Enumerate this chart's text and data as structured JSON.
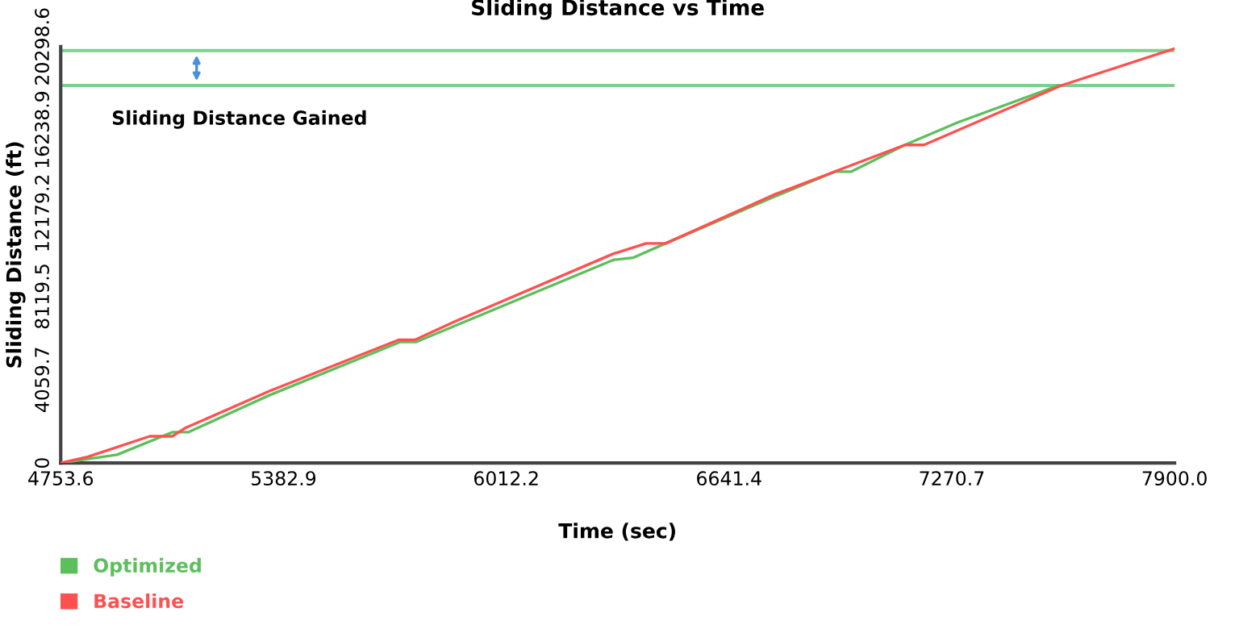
{
  "chart_data": {
    "type": "line",
    "title": "Sliding Distance vs Time",
    "xlabel": "Time (sec)",
    "ylabel": "Sliding Distance (ft)",
    "xlim": [
      4753.6,
      7900.0
    ],
    "xticks": [
      4753.6,
      5382.9,
      6012.2,
      6641.4,
      7270.7,
      {
        "value": 7900,
        "label": "7900.0"
      }
    ],
    "ylim": [
      0,
      20298.6
    ],
    "yticks": [
      0,
      4059.7,
      8119.5,
      12179.2,
      16238.9,
      20298.6
    ],
    "grid": false,
    "legend": "bottom left",
    "marker": "none",
    "line_style": "solid",
    "series": [
      {
        "name": "Optimized",
        "color": "#5cbf5c",
        "x": [
          4753.6,
          4913,
          5069,
          5114,
          5343,
          5713,
          5758,
          6315,
          6370,
          6462,
          6772,
          6941,
          6987,
          7138,
          7288,
          7571
        ],
        "values": [
          0,
          400,
          1500,
          1500,
          3300,
          5900,
          5900,
          9900,
          10000,
          10700,
          13000,
          14200,
          14200,
          15500,
          16600,
          18400
        ]
      },
      {
        "name": "Baseline",
        "color": "#ff5050",
        "x": [
          4753.6,
          4831,
          5005,
          5069,
          5105,
          5343,
          5708,
          5754,
          5868,
          6315,
          6407,
          6462,
          6772,
          6955,
          7138,
          7192,
          7580,
          7900
        ],
        "values": [
          0,
          300,
          1300,
          1300,
          1700,
          3500,
          6000,
          6000,
          6900,
          10200,
          10700,
          10700,
          13100,
          14300,
          15500,
          15500,
          18400,
          20200
        ]
      }
    ],
    "ref_lines": [
      {
        "axis": "y",
        "value": 20100,
        "color": "#7fcf8f"
      },
      {
        "axis": "y",
        "value": 18400,
        "color": "#7fcf8f"
      }
    ],
    "annotations": [
      "Sliding Distance Gained"
    ]
  }
}
